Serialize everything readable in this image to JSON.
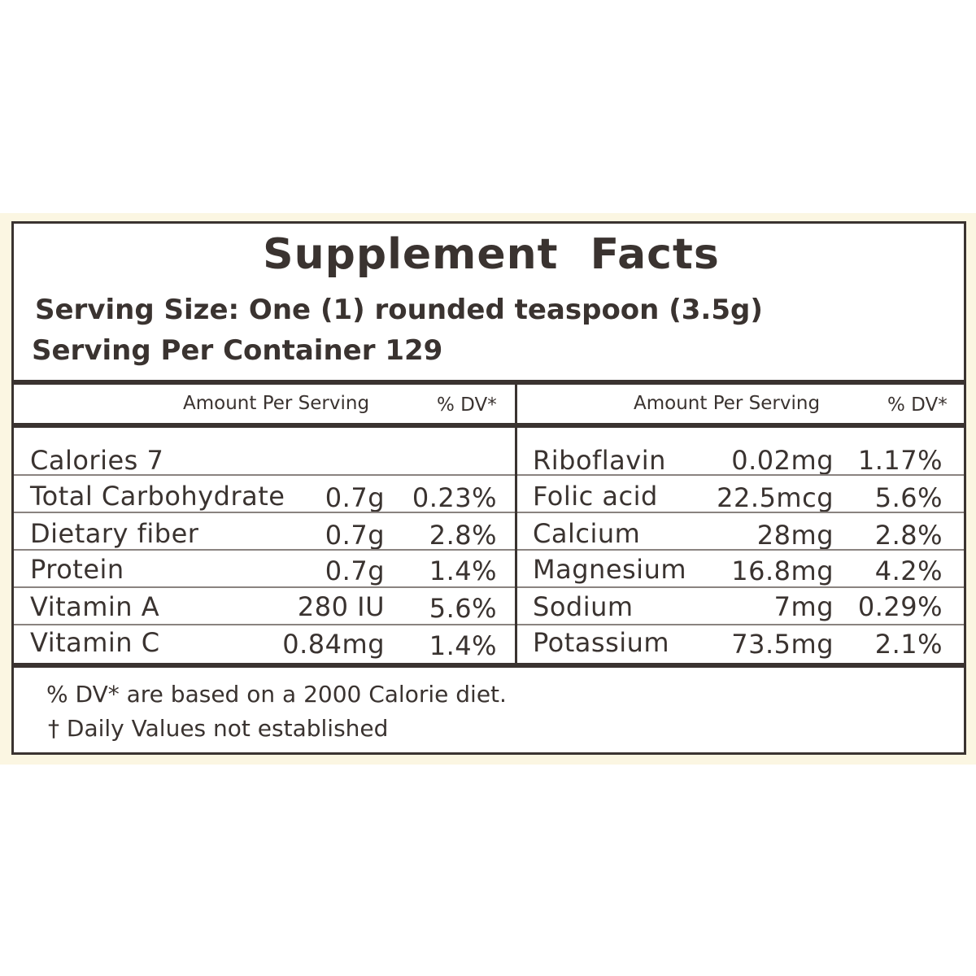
{
  "panel": {
    "title": "Supplement Facts",
    "serving_size": "Serving Size: One (1) rounded teaspoon (3.5g)",
    "servings_per_container": "Serving Per Container 129"
  },
  "table": {
    "left": {
      "header_amount": "Amount Per Serving",
      "header_dv": "% DV*",
      "calories": "Calories 7",
      "rows": [
        {
          "name": "Total Carbohydrate",
          "amount": "0.7g",
          "dv": "0.23%"
        },
        {
          "name": "Dietary fiber",
          "amount": "0.7g",
          "dv": "2.8%"
        },
        {
          "name": "Protein",
          "amount": "0.7g",
          "dv": "1.4%"
        },
        {
          "name": "Vitamin A",
          "amount": "280 IU",
          "dv": "5.6%"
        },
        {
          "name": "Vitamin C",
          "amount": "0.84mg",
          "dv": "1.4%"
        }
      ]
    },
    "right": {
      "header_amount": "Amount Per Serving",
      "header_dv": "% DV*",
      "rows": [
        {
          "name": "Riboflavin",
          "amount": "0.02mg",
          "dv": "1.17%"
        },
        {
          "name": "Folic acid",
          "amount": "22.5mcg",
          "dv": "5.6%"
        },
        {
          "name": "Calcium",
          "amount": "28mg",
          "dv": "2.8%"
        },
        {
          "name": "Magnesium",
          "amount": "16.8mg",
          "dv": "4.2%"
        },
        {
          "name": "Sodium",
          "amount": "7mg",
          "dv": "0.29%"
        },
        {
          "name": "Potassium",
          "amount": "73.5mg",
          "dv": "2.1%"
        }
      ]
    }
  },
  "footnotes": {
    "dv_note": "% DV* are based on a 2000 Calorie diet.",
    "dagger_note": "† Daily Values not established"
  }
}
